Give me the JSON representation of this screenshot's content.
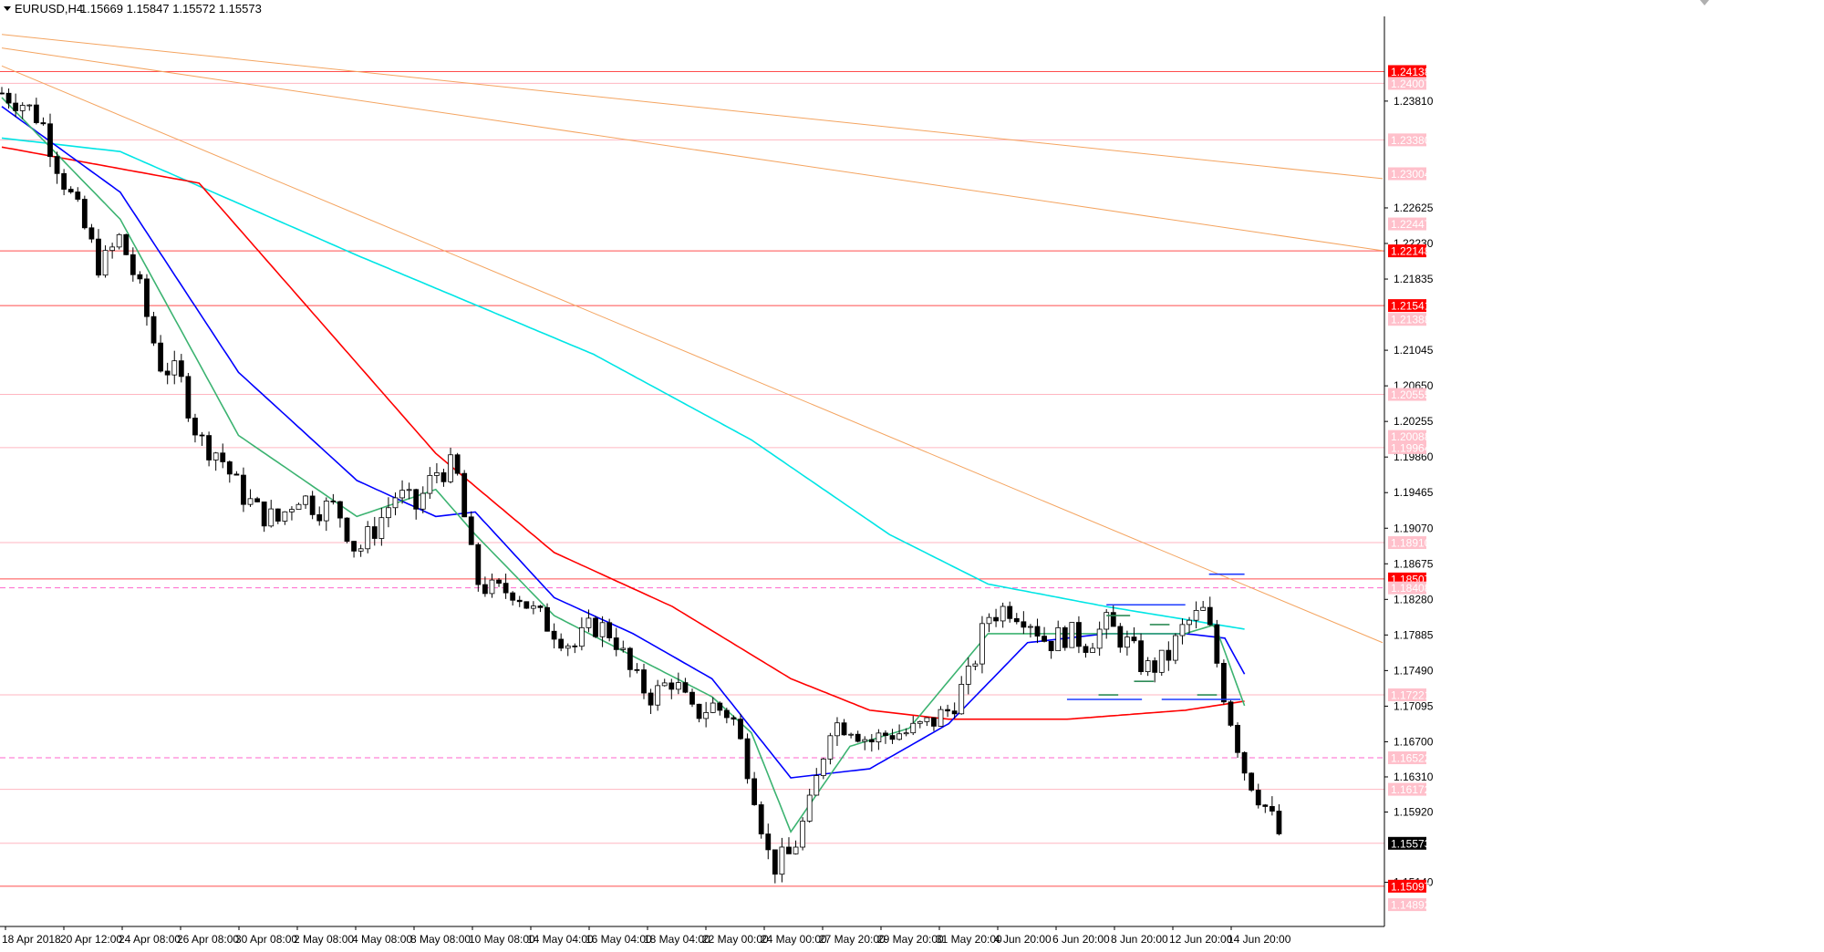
{
  "header": {
    "symbol": "EURUSD,H4",
    "ohlc": "1.15669 1.15847 1.15572 1.15573"
  },
  "colors": {
    "background": "#ffffff",
    "bull_candle": "#ffffff",
    "bear_candle": "#000000",
    "ma_fast": "#3cb371",
    "ma_mid": "#0000ff",
    "ma_slow": "#ff0000",
    "ma_long": "#00e5e5",
    "trendline": "#f4a460",
    "level_red": "#ff4d4d",
    "level_pink": "#ffb6c1",
    "level_dash": "#ff66cc",
    "channel_blue": "#1e3cff",
    "channel_green": "#2e8b57"
  },
  "chart_data": {
    "type": "candlestick",
    "symbol": "EURUSD",
    "timeframe": "H4",
    "ylim": [
      1.1465,
      1.2475
    ],
    "y_ticks": [
      "1.23810",
      "1.22625",
      "1.22230",
      "1.21835",
      "1.21045",
      "1.20650",
      "1.20255",
      "1.19860",
      "1.19465",
      "1.19070",
      "1.18675",
      "1.18280",
      "1.17885",
      "1.17490",
      "1.17095",
      "1.16700",
      "1.16310",
      "1.15920",
      "1.15140"
    ],
    "x_ticks": [
      "18 Apr 2018",
      "20 Apr 12:00",
      "24 Apr 08:00",
      "26 Apr 08:00",
      "30 Apr 08:00",
      "2 May 08:00",
      "4 May 08:00",
      "8 May 08:00",
      "10 May 08:00",
      "14 May 04:00",
      "16 May 04:00",
      "18 May 04:00",
      "22 May 00:00",
      "24 May 00:00",
      "27 May 20:00",
      "29 May 20:00",
      "31 May 20:00",
      "4 Jun 20:00",
      "6 Jun 20:00",
      "8 Jun 20:00",
      "12 Jun 20:00",
      "14 Jun 20:00"
    ],
    "price_labels": [
      {
        "value": "1.24138",
        "style": "red"
      },
      {
        "value": "1.24007",
        "style": "pink"
      },
      {
        "value": "1.23380",
        "style": "pink"
      },
      {
        "value": "1.23004",
        "style": "pink"
      },
      {
        "value": "1.22447",
        "style": "pink"
      },
      {
        "value": "1.22148",
        "style": "red"
      },
      {
        "value": "1.21541",
        "style": "red"
      },
      {
        "value": "1.21388",
        "style": "pink"
      },
      {
        "value": "1.20555",
        "style": "pink"
      },
      {
        "value": "1.20088",
        "style": "pink"
      },
      {
        "value": "1.19964",
        "style": "pink"
      },
      {
        "value": "1.18910",
        "style": "pink"
      },
      {
        "value": "1.18507",
        "style": "red"
      },
      {
        "value": "1.18408",
        "style": "pink"
      },
      {
        "value": "1.17221",
        "style": "pink"
      },
      {
        "value": "1.16522",
        "style": "pink"
      },
      {
        "value": "1.16172",
        "style": "pink"
      },
      {
        "value": "1.15573",
        "style": "current"
      },
      {
        "value": "1.15097",
        "style": "red"
      },
      {
        "value": "1.14892",
        "style": "pink"
      }
    ],
    "close_path": [
      [
        0,
        1.239
      ],
      [
        10,
        1.238
      ],
      [
        20,
        1.236
      ],
      [
        30,
        1.23
      ],
      [
        40,
        1.225
      ],
      [
        50,
        1.2195
      ],
      [
        60,
        1.223
      ],
      [
        70,
        1.217
      ],
      [
        80,
        1.209
      ],
      [
        90,
        1.2075
      ],
      [
        100,
        1.2005
      ],
      [
        110,
        1.199
      ],
      [
        120,
        1.195
      ],
      [
        130,
        1.1925
      ],
      [
        140,
        1.1915
      ],
      [
        150,
        1.1945
      ],
      [
        160,
        1.193
      ],
      [
        170,
        1.193
      ],
      [
        180,
        1.188
      ],
      [
        190,
        1.191
      ],
      [
        200,
        1.1945
      ],
      [
        210,
        1.193
      ],
      [
        220,
        1.197
      ],
      [
        230,
        1.1975
      ],
      [
        240,
        1.185
      ],
      [
        250,
        1.1835
      ],
      [
        260,
        1.184
      ],
      [
        270,
        1.1812
      ],
      [
        280,
        1.1795
      ],
      [
        290,
        1.1775
      ],
      [
        300,
        1.18
      ],
      [
        310,
        1.179
      ],
      [
        320,
        1.174
      ],
      [
        330,
        1.172
      ],
      [
        340,
        1.174
      ],
      [
        350,
        1.17
      ],
      [
        360,
        1.171
      ],
      [
        370,
        1.17
      ],
      [
        380,
        1.163
      ],
      [
        390,
        1.153
      ],
      [
        400,
        1.1545
      ],
      [
        410,
        1.16
      ],
      [
        420,
        1.169
      ],
      [
        430,
        1.169
      ],
      [
        440,
        1.167
      ],
      [
        450,
        1.168
      ],
      [
        460,
        1.168
      ],
      [
        470,
        1.169
      ],
      [
        480,
        1.1705
      ],
      [
        490,
        1.174
      ],
      [
        500,
        1.181
      ],
      [
        510,
        1.182
      ],
      [
        520,
        1.181
      ],
      [
        530,
        1.178
      ],
      [
        540,
        1.179
      ],
      [
        550,
        1.178
      ],
      [
        560,
        1.18
      ],
      [
        570,
        1.178
      ],
      [
        580,
        1.175
      ],
      [
        590,
        1.176
      ],
      [
        600,
        1.18
      ],
      [
        610,
        1.1815
      ],
      [
        620,
        1.172
      ],
      [
        630,
        1.164
      ],
      [
        640,
        1.16
      ],
      [
        650,
        1.1557
      ]
    ],
    "ma_fast": [
      [
        0,
        1.2385
      ],
      [
        60,
        1.225
      ],
      [
        120,
        1.201
      ],
      [
        180,
        1.192
      ],
      [
        220,
        1.195
      ],
      [
        240,
        1.19
      ],
      [
        280,
        1.181
      ],
      [
        320,
        1.1765
      ],
      [
        360,
        1.172
      ],
      [
        380,
        1.168
      ],
      [
        400,
        1.157
      ],
      [
        430,
        1.1665
      ],
      [
        460,
        1.1685
      ],
      [
        500,
        1.179
      ],
      [
        520,
        1.179
      ],
      [
        560,
        1.179
      ],
      [
        600,
        1.179
      ],
      [
        615,
        1.18
      ],
      [
        630,
        1.171
      ]
    ],
    "ma_mid": [
      [
        0,
        1.2375
      ],
      [
        60,
        1.228
      ],
      [
        120,
        1.208
      ],
      [
        180,
        1.196
      ],
      [
        220,
        1.192
      ],
      [
        240,
        1.1925
      ],
      [
        280,
        1.183
      ],
      [
        320,
        1.179
      ],
      [
        360,
        1.174
      ],
      [
        400,
        1.163
      ],
      [
        440,
        1.164
      ],
      [
        480,
        1.169
      ],
      [
        520,
        1.178
      ],
      [
        560,
        1.179
      ],
      [
        600,
        1.179
      ],
      [
        620,
        1.1785
      ],
      [
        630,
        1.1745
      ]
    ],
    "ma_slow": [
      [
        0,
        1.233
      ],
      [
        100,
        1.229
      ],
      [
        160,
        1.214
      ],
      [
        220,
        1.199
      ],
      [
        280,
        1.188
      ],
      [
        340,
        1.182
      ],
      [
        400,
        1.174
      ],
      [
        440,
        1.1705
      ],
      [
        480,
        1.1695
      ],
      [
        540,
        1.1695
      ],
      [
        600,
        1.1705
      ],
      [
        630,
        1.1715
      ]
    ],
    "ma_long": [
      [
        0,
        1.234
      ],
      [
        60,
        1.2325
      ],
      [
        180,
        1.221
      ],
      [
        300,
        1.21
      ],
      [
        380,
        1.2005
      ],
      [
        450,
        1.19
      ],
      [
        500,
        1.1845
      ],
      [
        560,
        1.182
      ],
      [
        630,
        1.1795
      ]
    ],
    "trendlines": [
      {
        "from": [
          0,
          1.2455
        ],
        "to": [
          700,
          1.2295
        ]
      },
      {
        "from": [
          0,
          1.244
        ],
        "to": [
          700,
          1.2215
        ]
      },
      {
        "from": [
          0,
          1.242
        ],
        "to": [
          700,
          1.178
        ]
      }
    ],
    "horizontal_levels": [
      {
        "value": 1.24138,
        "style": "red"
      },
      {
        "value": 1.24007,
        "style": "pink"
      },
      {
        "value": 1.22148,
        "style": "red"
      },
      {
        "value": 1.21541,
        "style": "red"
      },
      {
        "value": 1.18507,
        "style": "red"
      },
      {
        "value": 1.18408,
        "style": "dash"
      },
      {
        "value": 1.16522,
        "style": "dash"
      },
      {
        "value": 1.15097,
        "style": "red"
      },
      {
        "value": 1.15573,
        "style": "pink"
      },
      {
        "value": 1.2338,
        "style": "pink"
      },
      {
        "value": 1.20555,
        "style": "pink"
      },
      {
        "value": 1.19964,
        "style": "pink"
      },
      {
        "value": 1.1891,
        "style": "pink"
      },
      {
        "value": 1.17221,
        "style": "pink"
      },
      {
        "value": 1.16172,
        "style": "pink"
      }
    ],
    "segments": [
      {
        "x": [
          612,
          630
        ],
        "y": 1.1856,
        "color": "blue"
      },
      {
        "x": [
          560,
          600
        ],
        "y": 1.1822,
        "color": "blue"
      },
      {
        "x": [
          540,
          578
        ],
        "y": 1.1717,
        "color": "blue"
      },
      {
        "x": [
          588,
          628
        ],
        "y": 1.1717,
        "color": "blue"
      },
      {
        "x": [
          560,
          572
        ],
        "y": 1.181,
        "color": "green"
      },
      {
        "x": [
          582,
          592
        ],
        "y": 1.18,
        "color": "green"
      },
      {
        "x": [
          556,
          566
        ],
        "y": 1.1722,
        "color": "green"
      },
      {
        "x": [
          574,
          584
        ],
        "y": 1.1737,
        "color": "green"
      },
      {
        "x": [
          606,
          616
        ],
        "y": 1.1722,
        "color": "green"
      }
    ]
  }
}
